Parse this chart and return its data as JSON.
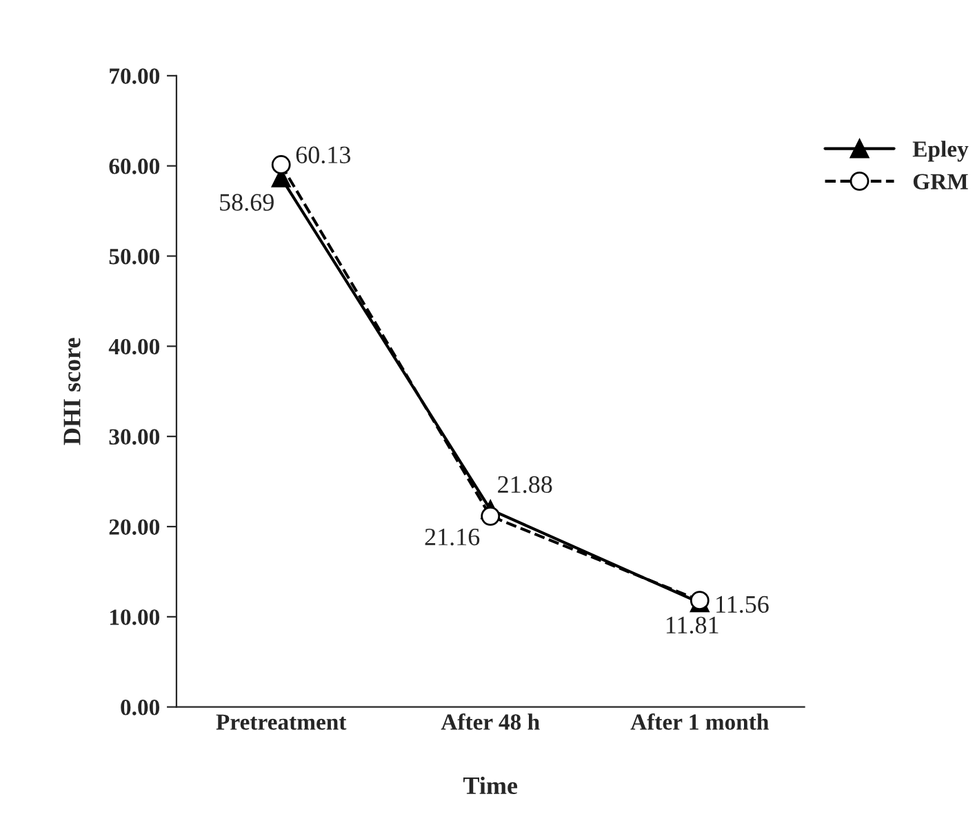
{
  "chart_data": {
    "type": "line",
    "xlabel": "Time",
    "ylabel": "DHI score",
    "categories": [
      "Pretreatment",
      "After 48 h",
      "After 1 month"
    ],
    "ylim": [
      0,
      70
    ],
    "yticks": [
      {
        "value": 0,
        "label": "0.00"
      },
      {
        "value": 10,
        "label": "10.00"
      },
      {
        "value": 20,
        "label": "20.00"
      },
      {
        "value": 30,
        "label": "30.00"
      },
      {
        "value": 40,
        "label": "40.00"
      },
      {
        "value": 50,
        "label": "50.00"
      },
      {
        "value": 60,
        "label": "60.00"
      },
      {
        "value": 70,
        "label": "70.00"
      }
    ],
    "series": [
      {
        "name": "Epley",
        "color": "#000000",
        "values": [
          58.69,
          21.88,
          11.56
        ],
        "value_labels": [
          "58.69",
          "21.88",
          "11.56"
        ],
        "marker": "triangle",
        "line_style": "solid"
      },
      {
        "name": "GRM",
        "color": "#000000",
        "values": [
          60.13,
          21.16,
          11.81
        ],
        "value_labels": [
          "60.13",
          "21.16",
          "11.81"
        ],
        "marker": "circle",
        "line_style": "dashed"
      }
    ],
    "legend": "right",
    "grid": false
  }
}
